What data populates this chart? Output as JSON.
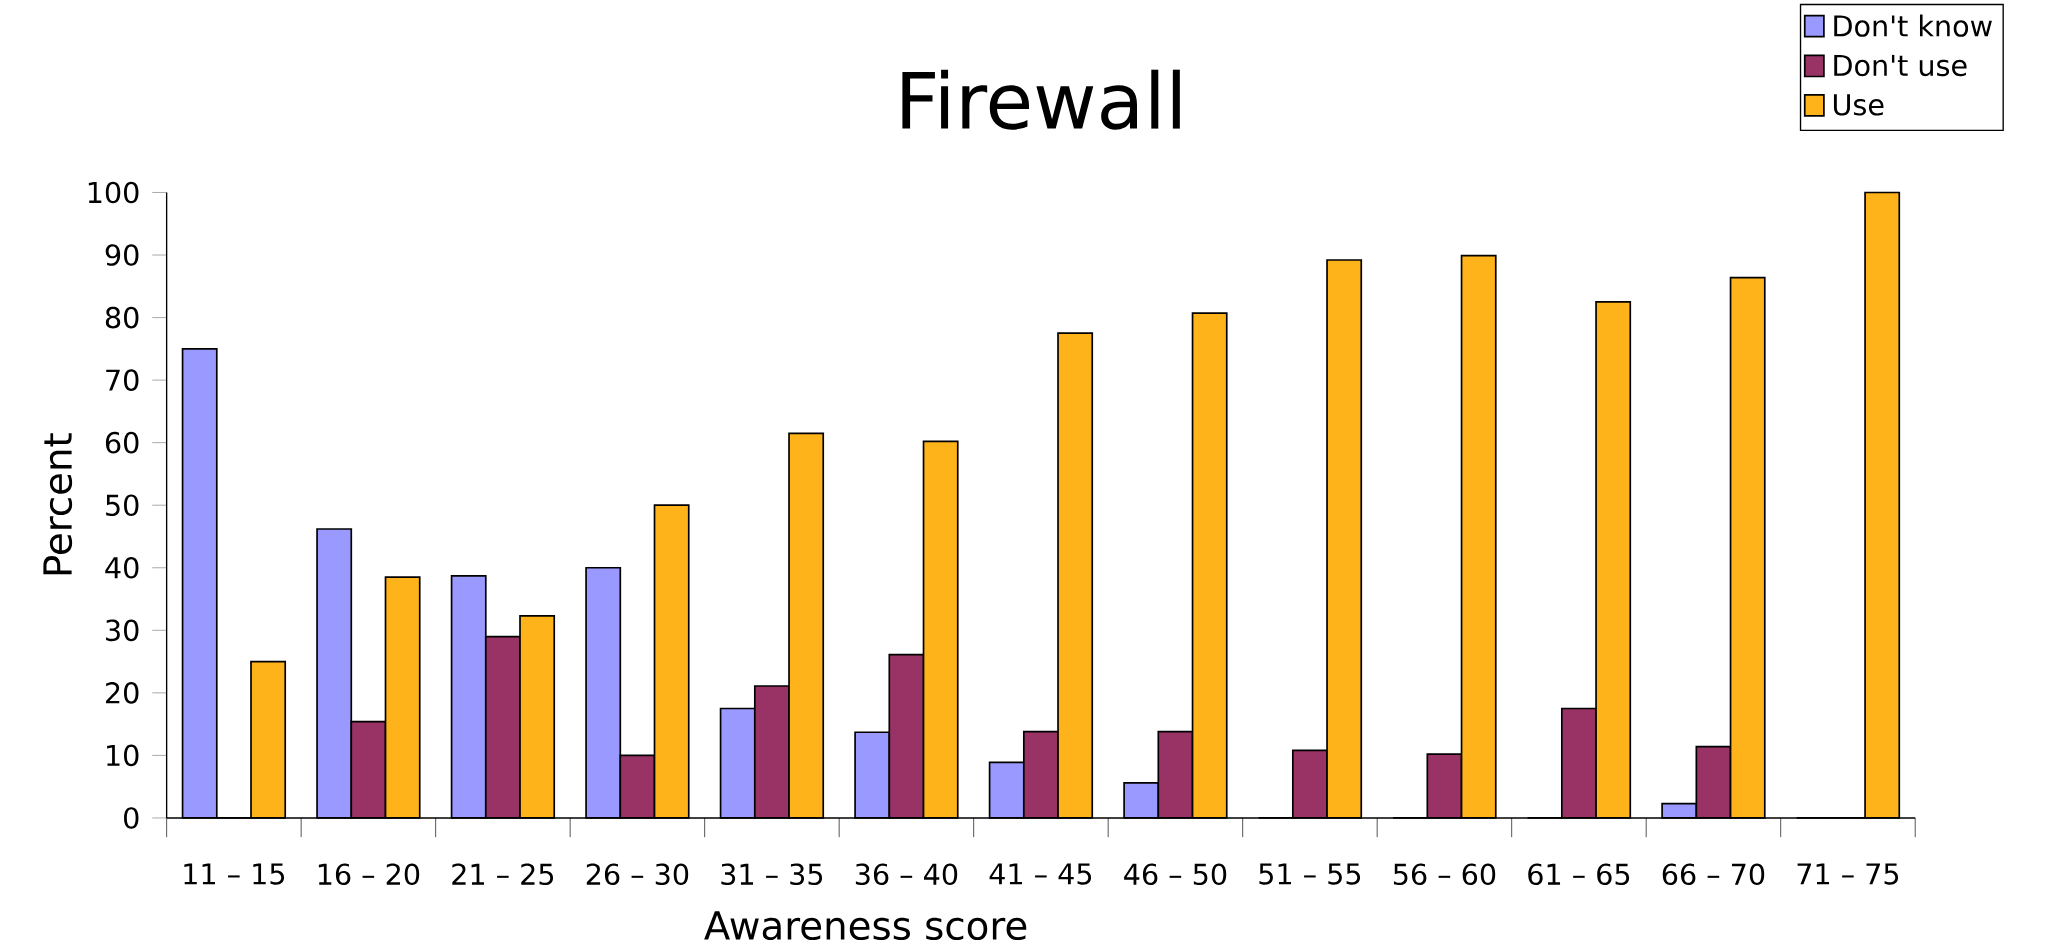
{
  "chart_data": {
    "type": "bar",
    "title": "Firewall",
    "xlabel": "Awareness score",
    "ylabel": "Percent",
    "categories": [
      "11 – 15",
      "16 – 20",
      "21 – 25",
      "26 – 30",
      "31 – 35",
      "36 – 40",
      "41 – 45",
      "46 – 50",
      "51 – 55",
      "56 – 60",
      "61 – 65",
      "66 – 70",
      "71 – 75"
    ],
    "series": [
      {
        "name": "Don't know",
        "color": "#9999ff",
        "values": [
          75,
          46.2,
          38.7,
          40,
          17.5,
          13.7,
          8.9,
          5.6,
          0,
          0,
          0,
          2.3,
          0
        ]
      },
      {
        "name": "Don't use",
        "color": "#993366",
        "values": [
          0,
          15.4,
          29,
          10,
          21.1,
          26.1,
          13.8,
          13.8,
          10.8,
          10.2,
          17.5,
          11.4,
          0
        ]
      },
      {
        "name": "Use",
        "color": "#ffb31a",
        "values": [
          25,
          38.5,
          32.3,
          50,
          61.5,
          60.2,
          77.5,
          80.7,
          89.2,
          89.9,
          82.5,
          86.4,
          100
        ]
      }
    ],
    "ylim": [
      0,
      100
    ],
    "yticks": [
      0,
      10,
      20,
      30,
      40,
      50,
      60,
      70,
      80,
      90,
      100
    ],
    "legend": "top right"
  }
}
